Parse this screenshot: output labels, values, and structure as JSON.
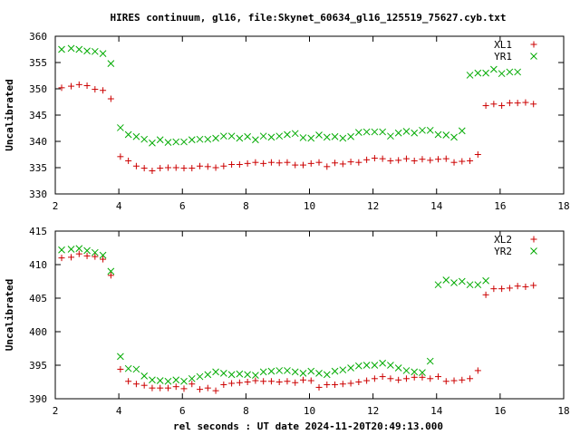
{
  "chart_data": {
    "title": "HIRES continuum, gl16, file:Skynet_60634_gl16_125519_75627.cyb.txt",
    "xlabel": "rel seconds : UT date 2024-11-20T20:49:13.000",
    "panels": [
      {
        "type": "scatter",
        "ylabel": "Uncalibrated",
        "xlim": [
          2,
          18
        ],
        "ylim": [
          330,
          360
        ],
        "xticks": [
          "2",
          "4",
          "6",
          "8",
          "10",
          "12",
          "14",
          "16",
          "18"
        ],
        "yticks": [
          "330",
          "335",
          "340",
          "345",
          "350",
          "355",
          "360"
        ],
        "legend_position": "top-right",
        "series": [
          {
            "name": "XL1",
            "color": "#cc0000",
            "marker": "plus",
            "points": [
              [
                2.2,
                350.2
              ],
              [
                2.5,
                350.5
              ],
              [
                2.75,
                350.8
              ],
              [
                3.0,
                350.6
              ],
              [
                3.25,
                349.9
              ],
              [
                3.5,
                349.7
              ],
              [
                3.75,
                348.1
              ],
              [
                4.05,
                337.1
              ],
              [
                4.3,
                336.3
              ],
              [
                4.55,
                335.3
              ],
              [
                4.8,
                334.9
              ],
              [
                5.05,
                334.4
              ],
              [
                5.3,
                334.9
              ],
              [
                5.55,
                335.0
              ],
              [
                5.8,
                335.0
              ],
              [
                6.05,
                334.9
              ],
              [
                6.3,
                334.9
              ],
              [
                6.55,
                335.3
              ],
              [
                6.8,
                335.2
              ],
              [
                7.05,
                335.0
              ],
              [
                7.3,
                335.3
              ],
              [
                7.55,
                335.6
              ],
              [
                7.8,
                335.6
              ],
              [
                8.05,
                335.8
              ],
              [
                8.3,
                336.0
              ],
              [
                8.55,
                335.8
              ],
              [
                8.8,
                336.0
              ],
              [
                9.05,
                335.9
              ],
              [
                9.3,
                336.0
              ],
              [
                9.55,
                335.5
              ],
              [
                9.8,
                335.5
              ],
              [
                10.05,
                335.8
              ],
              [
                10.3,
                336.0
              ],
              [
                10.55,
                335.2
              ],
              [
                10.8,
                335.9
              ],
              [
                11.05,
                335.7
              ],
              [
                11.3,
                336.1
              ],
              [
                11.55,
                336.0
              ],
              [
                11.8,
                336.5
              ],
              [
                12.05,
                336.8
              ],
              [
                12.3,
                336.7
              ],
              [
                12.55,
                336.3
              ],
              [
                12.8,
                336.4
              ],
              [
                13.05,
                336.7
              ],
              [
                13.3,
                336.3
              ],
              [
                13.55,
                336.6
              ],
              [
                13.8,
                336.4
              ],
              [
                14.05,
                336.6
              ],
              [
                14.3,
                336.7
              ],
              [
                14.55,
                336.0
              ],
              [
                14.8,
                336.2
              ],
              [
                15.05,
                336.3
              ],
              [
                15.3,
                337.5
              ],
              [
                15.55,
                346.8
              ],
              [
                15.8,
                347.1
              ],
              [
                16.05,
                346.8
              ],
              [
                16.3,
                347.3
              ],
              [
                16.55,
                347.3
              ],
              [
                16.8,
                347.4
              ],
              [
                17.05,
                347.1
              ]
            ]
          },
          {
            "name": "YR1",
            "color": "#00aa00",
            "marker": "cross",
            "points": [
              [
                2.2,
                357.5
              ],
              [
                2.5,
                357.7
              ],
              [
                2.75,
                357.5
              ],
              [
                3.0,
                357.2
              ],
              [
                3.25,
                357.1
              ],
              [
                3.5,
                356.7
              ],
              [
                3.75,
                354.8
              ],
              [
                4.05,
                342.6
              ],
              [
                4.3,
                341.3
              ],
              [
                4.55,
                340.9
              ],
              [
                4.8,
                340.4
              ],
              [
                5.05,
                339.7
              ],
              [
                5.3,
                340.3
              ],
              [
                5.55,
                339.8
              ],
              [
                5.8,
                339.9
              ],
              [
                6.05,
                339.9
              ],
              [
                6.3,
                340.3
              ],
              [
                6.55,
                340.4
              ],
              [
                6.8,
                340.4
              ],
              [
                7.05,
                340.6
              ],
              [
                7.3,
                341.0
              ],
              [
                7.55,
                341.0
              ],
              [
                7.8,
                340.6
              ],
              [
                8.05,
                340.9
              ],
              [
                8.3,
                340.3
              ],
              [
                8.55,
                341.0
              ],
              [
                8.8,
                340.8
              ],
              [
                9.05,
                341.0
              ],
              [
                9.3,
                341.3
              ],
              [
                9.55,
                341.5
              ],
              [
                9.8,
                340.7
              ],
              [
                10.05,
                340.6
              ],
              [
                10.3,
                341.2
              ],
              [
                10.55,
                340.8
              ],
              [
                10.8,
                340.9
              ],
              [
                11.05,
                340.6
              ],
              [
                11.3,
                340.9
              ],
              [
                11.55,
                341.7
              ],
              [
                11.8,
                341.8
              ],
              [
                12.05,
                341.8
              ],
              [
                12.3,
                341.8
              ],
              [
                12.55,
                341.0
              ],
              [
                12.8,
                341.6
              ],
              [
                13.05,
                341.9
              ],
              [
                13.3,
                341.6
              ],
              [
                13.55,
                342.1
              ],
              [
                13.8,
                342.1
              ],
              [
                14.05,
                341.3
              ],
              [
                14.3,
                341.2
              ],
              [
                14.55,
                340.8
              ],
              [
                14.8,
                342.0
              ],
              [
                15.05,
                352.6
              ],
              [
                15.3,
                353.0
              ],
              [
                15.55,
                353.0
              ],
              [
                15.8,
                353.7
              ],
              [
                16.05,
                352.9
              ],
              [
                16.3,
                353.2
              ],
              [
                16.55,
                353.2
              ]
            ]
          }
        ]
      },
      {
        "type": "scatter",
        "ylabel": "Uncalibrated",
        "xlim": [
          2,
          18
        ],
        "ylim": [
          390,
          415
        ],
        "xticks": [
          "2",
          "4",
          "6",
          "8",
          "10",
          "12",
          "14",
          "16",
          "18"
        ],
        "yticks": [
          "390",
          "395",
          "400",
          "405",
          "410",
          "415"
        ],
        "legend_position": "top-right",
        "series": [
          {
            "name": "XL2",
            "color": "#cc0000",
            "marker": "plus",
            "points": [
              [
                2.2,
                411.0
              ],
              [
                2.5,
                411.1
              ],
              [
                2.75,
                411.6
              ],
              [
                3.0,
                411.3
              ],
              [
                3.25,
                411.2
              ],
              [
                3.5,
                410.8
              ],
              [
                3.75,
                408.4
              ],
              [
                4.05,
                394.4
              ],
              [
                4.3,
                392.6
              ],
              [
                4.55,
                392.2
              ],
              [
                4.8,
                392.0
              ],
              [
                5.05,
                391.6
              ],
              [
                5.3,
                391.6
              ],
              [
                5.55,
                391.6
              ],
              [
                5.8,
                391.8
              ],
              [
                6.05,
                391.5
              ],
              [
                6.3,
                392.2
              ],
              [
                6.55,
                391.4
              ],
              [
                6.8,
                391.6
              ],
              [
                7.05,
                391.2
              ],
              [
                7.3,
                392.1
              ],
              [
                7.55,
                392.3
              ],
              [
                7.8,
                392.4
              ],
              [
                8.05,
                392.5
              ],
              [
                8.3,
                392.7
              ],
              [
                8.55,
                392.6
              ],
              [
                8.8,
                392.6
              ],
              [
                9.05,
                392.5
              ],
              [
                9.3,
                392.6
              ],
              [
                9.55,
                392.4
              ],
              [
                9.8,
                392.8
              ],
              [
                10.05,
                392.7
              ],
              [
                10.3,
                391.7
              ],
              [
                10.55,
                392.1
              ],
              [
                10.8,
                392.1
              ],
              [
                11.05,
                392.2
              ],
              [
                11.3,
                392.3
              ],
              [
                11.55,
                392.5
              ],
              [
                11.8,
                392.7
              ],
              [
                12.05,
                393.0
              ],
              [
                12.3,
                393.3
              ],
              [
                12.55,
                393.0
              ],
              [
                12.8,
                392.8
              ],
              [
                13.05,
                393.0
              ],
              [
                13.3,
                393.2
              ],
              [
                13.55,
                393.2
              ],
              [
                13.8,
                393.0
              ],
              [
                14.05,
                393.3
              ],
              [
                14.3,
                392.6
              ],
              [
                14.55,
                392.7
              ],
              [
                14.8,
                392.8
              ],
              [
                15.05,
                393.0
              ],
              [
                15.3,
                394.2
              ],
              [
                15.55,
                405.5
              ],
              [
                15.8,
                406.4
              ],
              [
                16.05,
                406.4
              ],
              [
                16.3,
                406.5
              ],
              [
                16.55,
                406.8
              ],
              [
                16.8,
                406.7
              ],
              [
                17.05,
                406.9
              ]
            ]
          },
          {
            "name": "YR2",
            "color": "#00aa00",
            "marker": "cross",
            "points": [
              [
                2.2,
                412.2
              ],
              [
                2.5,
                412.3
              ],
              [
                2.75,
                412.4
              ],
              [
                3.0,
                412.1
              ],
              [
                3.25,
                411.8
              ],
              [
                3.5,
                411.4
              ],
              [
                3.75,
                409.0
              ],
              [
                4.05,
                396.3
              ],
              [
                4.3,
                394.5
              ],
              [
                4.55,
                394.4
              ],
              [
                4.8,
                393.4
              ],
              [
                5.05,
                392.8
              ],
              [
                5.3,
                392.7
              ],
              [
                5.55,
                392.6
              ],
              [
                5.8,
                392.8
              ],
              [
                6.05,
                392.6
              ],
              [
                6.3,
                393.0
              ],
              [
                6.55,
                393.3
              ],
              [
                6.8,
                393.6
              ],
              [
                7.05,
                394.0
              ],
              [
                7.3,
                393.8
              ],
              [
                7.55,
                393.6
              ],
              [
                7.8,
                393.7
              ],
              [
                8.05,
                393.6
              ],
              [
                8.3,
                393.5
              ],
              [
                8.55,
                394.0
              ],
              [
                8.8,
                394.1
              ],
              [
                9.05,
                394.2
              ],
              [
                9.3,
                394.2
              ],
              [
                9.55,
                394.0
              ],
              [
                9.8,
                393.8
              ],
              [
                10.05,
                394.1
              ],
              [
                10.3,
                393.8
              ],
              [
                10.55,
                393.6
              ],
              [
                10.8,
                394.1
              ],
              [
                11.05,
                394.3
              ],
              [
                11.3,
                394.6
              ],
              [
                11.55,
                394.9
              ],
              [
                11.8,
                395.0
              ],
              [
                12.05,
                395.0
              ],
              [
                12.3,
                395.3
              ],
              [
                12.55,
                395.0
              ],
              [
                12.8,
                394.6
              ],
              [
                13.05,
                394.2
              ],
              [
                13.3,
                394.0
              ],
              [
                13.55,
                393.9
              ],
              [
                13.8,
                395.6
              ],
              [
                14.05,
                407.0
              ],
              [
                14.3,
                407.7
              ],
              [
                14.55,
                407.3
              ],
              [
                14.8,
                407.5
              ],
              [
                15.05,
                407.0
              ],
              [
                15.3,
                407.0
              ],
              [
                15.55,
                407.6
              ]
            ]
          }
        ]
      }
    ]
  }
}
